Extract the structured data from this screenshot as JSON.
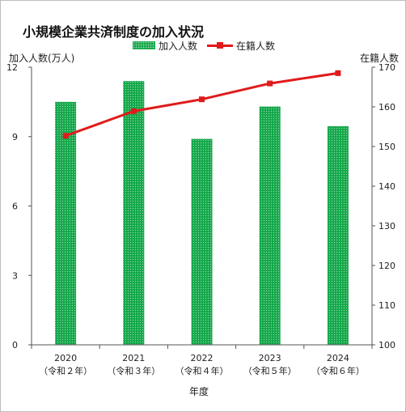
{
  "chart_data": {
    "type": "bar",
    "title": "小規模企業共済制度の加入状況",
    "categories": [
      "2020",
      "2021",
      "2022",
      "2023",
      "2024"
    ],
    "category_sublabels": [
      "（令和２年）",
      "（令和３年）",
      "（令和４年）",
      "（令和５年）",
      "（令和６年）"
    ],
    "xlabel": "年度",
    "series": [
      {
        "name": "加入人数",
        "type": "bar",
        "axis": "left",
        "values": [
          10.5,
          11.4,
          8.9,
          10.3,
          9.45
        ]
      },
      {
        "name": "在籍人数",
        "type": "line",
        "axis": "right",
        "values": [
          152.7,
          158.9,
          161.9,
          165.9,
          168.5
        ]
      }
    ],
    "y_left": {
      "label": "加入人数(万人)",
      "ylim": [
        0,
        12
      ],
      "ticks": [
        0,
        3,
        6,
        9,
        12
      ]
    },
    "y_right": {
      "label": "在籍人数",
      "ylim": [
        100,
        170
      ],
      "ticks": [
        100,
        110,
        120,
        130,
        140,
        150,
        160,
        170
      ]
    },
    "grid": false,
    "legend_position": "top-center",
    "colors": {
      "bar": "#14a84a",
      "line": "#e01b1b"
    }
  }
}
